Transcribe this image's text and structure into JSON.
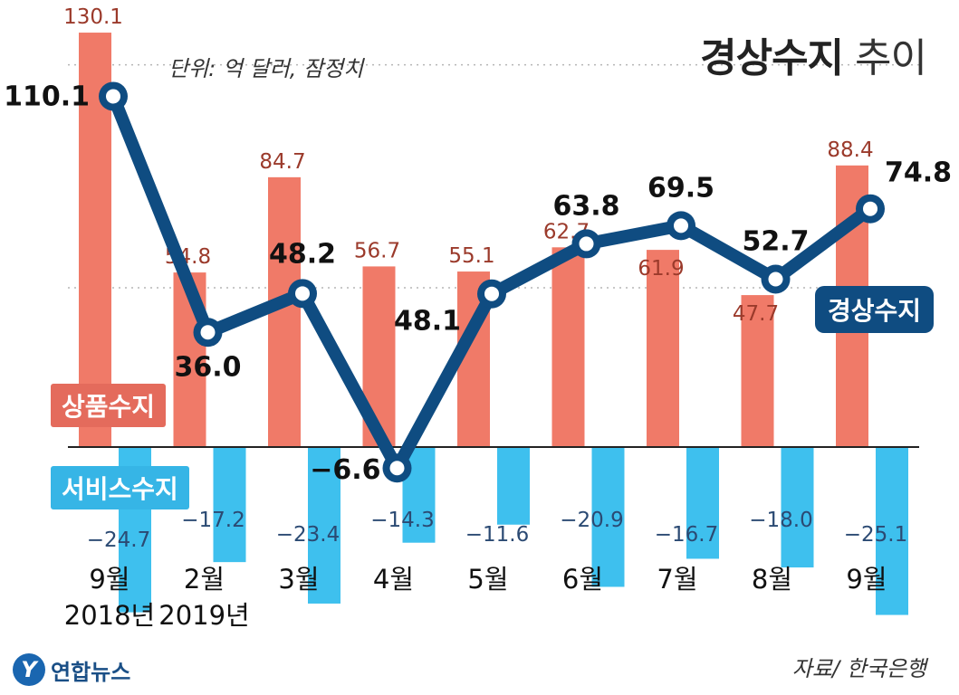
{
  "header": {
    "title_bold": "경상수지",
    "title_light": "추이",
    "unit_note": "단위: 억 달러, 잠정치",
    "source": "자료/ 한국은행",
    "logo_text": "연합뉴스"
  },
  "legend": {
    "goods": "상품수지",
    "services": "서비스수지",
    "current_account": "경상수지"
  },
  "colors": {
    "goods": "#f07a68",
    "goods_label": "#9b3a2b",
    "services": "#3ec0ee",
    "services_label": "#2b4a73",
    "current_account": "#0f4c81"
  },
  "chart_data": {
    "type": "bar",
    "title": "경상수지 추이",
    "unit": "억 달러",
    "categories": [
      "9월 2018년",
      "2월 2019년",
      "3월",
      "4월",
      "5월",
      "6월",
      "7월",
      "8월",
      "9월"
    ],
    "category_lines": [
      [
        "9월",
        "2018년"
      ],
      [
        "2월",
        "2019년"
      ],
      [
        "3월"
      ],
      [
        "4월"
      ],
      [
        "5월"
      ],
      [
        "6월"
      ],
      [
        "7월"
      ],
      [
        "8월"
      ],
      [
        "9월"
      ]
    ],
    "series": [
      {
        "name": "상품수지",
        "type": "bar",
        "values": [
          130.1,
          54.8,
          84.7,
          56.7,
          55.1,
          62.7,
          61.9,
          47.7,
          88.4
        ],
        "labels": [
          "130.1",
          "54.8",
          "84.7",
          "56.7",
          "55.1",
          "62.7",
          "61.9",
          "47.7",
          "88.4"
        ]
      },
      {
        "name": "서비스수지",
        "type": "bar",
        "values": [
          -24.7,
          -17.2,
          -23.4,
          -14.3,
          -11.6,
          -20.9,
          -16.7,
          -18.0,
          -25.1
        ],
        "labels": [
          "−24.7",
          "−17.2",
          "−23.4",
          "−14.3",
          "−11.6",
          "−20.9",
          "−16.7",
          "−18.0",
          "−25.1"
        ]
      },
      {
        "name": "경상수지",
        "type": "line",
        "values": [
          110.1,
          36.0,
          48.2,
          -6.6,
          48.1,
          63.8,
          69.5,
          52.7,
          74.8
        ],
        "labels": [
          "110.1",
          "36.0",
          "48.2",
          "−6.6",
          "48.1",
          "63.8",
          "69.5",
          "52.7",
          "74.8"
        ]
      }
    ],
    "grid": "dotted",
    "ylim": [
      -30,
      135
    ]
  }
}
